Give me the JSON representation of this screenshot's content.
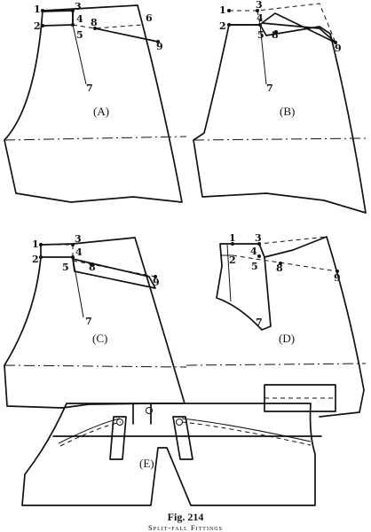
{
  "figure": {
    "number": "Fig. 214",
    "title": "Split-fall Fittings"
  },
  "panels": [
    {
      "id": "A",
      "label": "(A)",
      "points": [
        "1",
        "2",
        "3",
        "4",
        "5",
        "6",
        "7",
        "8",
        "9"
      ]
    },
    {
      "id": "B",
      "label": "(B)",
      "points": [
        "1",
        "2",
        "3",
        "4",
        "5",
        "7",
        "8",
        "9"
      ]
    },
    {
      "id": "C",
      "label": "(C)",
      "points": [
        "1",
        "2",
        "3",
        "4",
        "5",
        "7",
        "8",
        "9"
      ]
    },
    {
      "id": "D",
      "label": "(D)",
      "points": [
        "1",
        "2",
        "3",
        "4",
        "5",
        "7",
        "8",
        "9"
      ]
    },
    {
      "id": "E",
      "label": "(E)"
    }
  ]
}
